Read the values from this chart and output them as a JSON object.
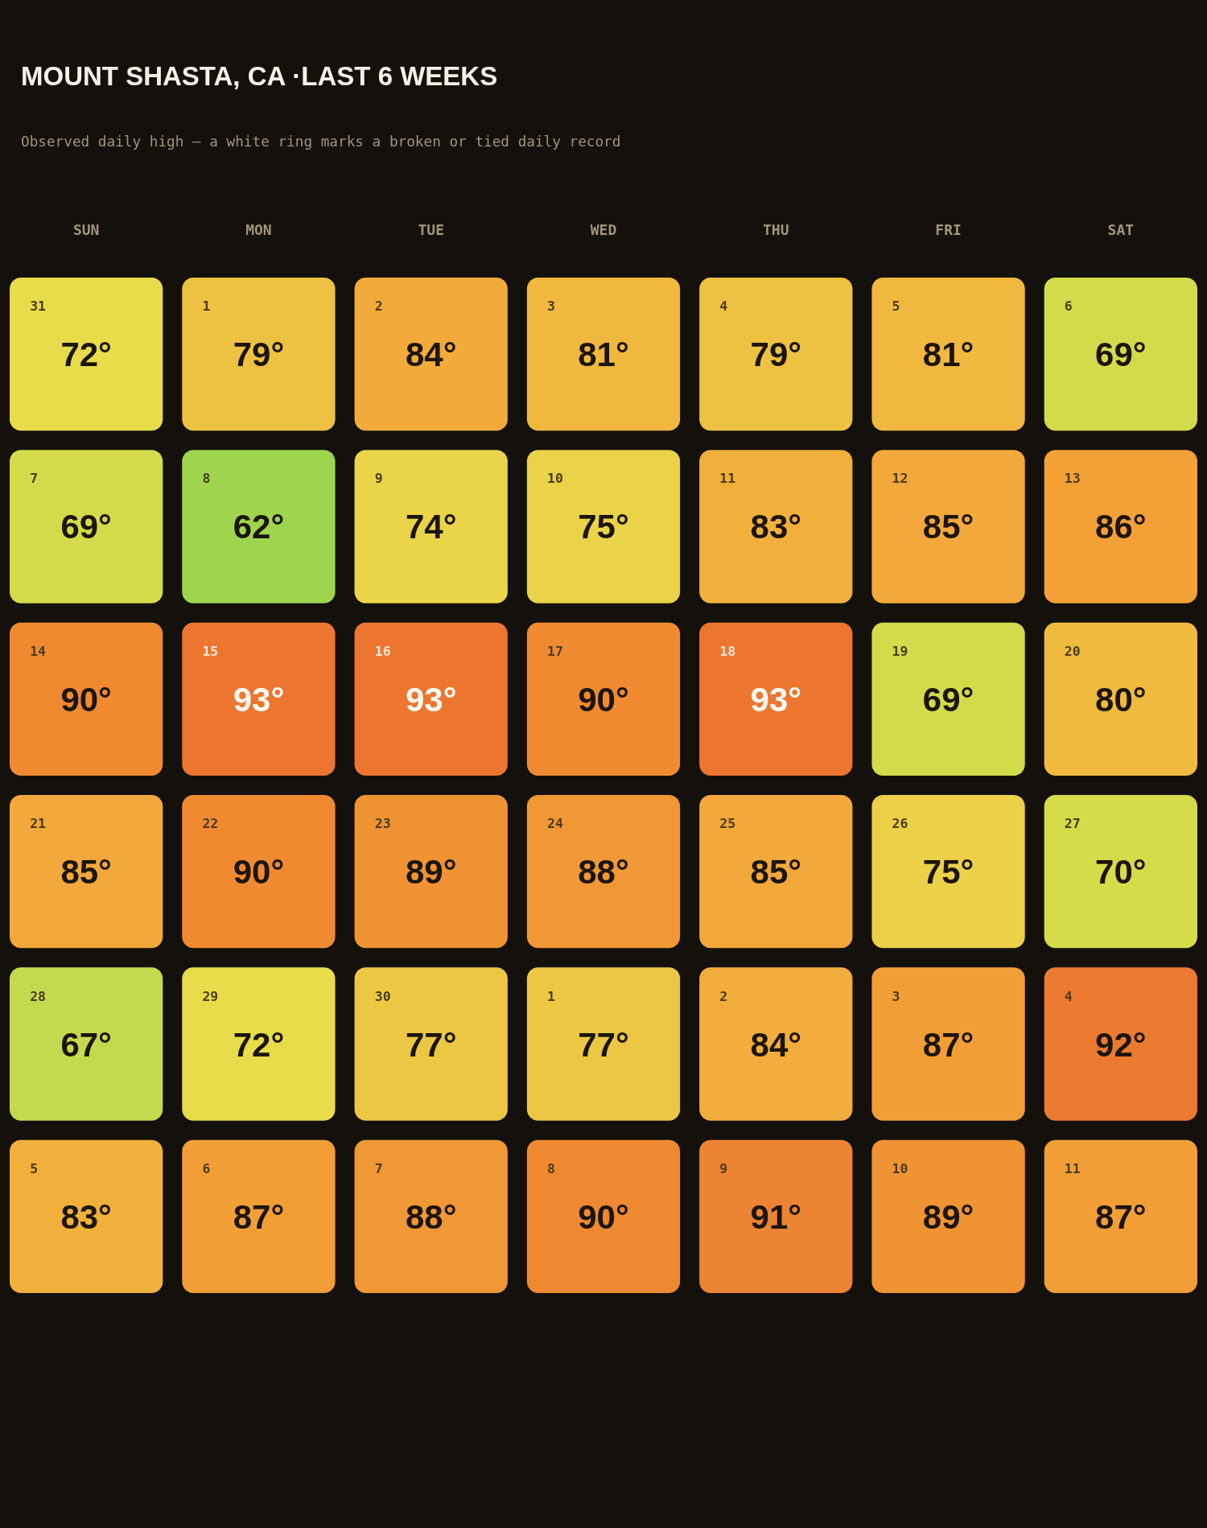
{
  "chart_data": {
    "type": "heatmap",
    "title": "MOUNT SHASTA, CA ·LAST 6 WEEKS",
    "subtitle": "Observed daily high — a white ring marks a broken or tied daily record",
    "categories": [
      "SUN",
      "MON",
      "TUE",
      "WED",
      "THU",
      "FRI",
      "SAT"
    ],
    "y_categories": [
      null,
      null,
      null,
      null,
      null,
      null
    ],
    "cells": [
      [
        72,
        79,
        84,
        81,
        79,
        81,
        69
      ],
      [
        69,
        62,
        74,
        75,
        83,
        85,
        86
      ],
      [
        90,
        93,
        93,
        90,
        93,
        69,
        80
      ],
      [
        85,
        90,
        89,
        88,
        85,
        75,
        70
      ],
      [
        67,
        72,
        77,
        77,
        84,
        87,
        92
      ],
      [
        83,
        87,
        88,
        90,
        91,
        89,
        87
      ]
    ],
    "cell_labels": [
      [
        "72°",
        "79°",
        "84°",
        "81°",
        "79°",
        "81°",
        "69°"
      ],
      [
        "69°",
        "62°",
        "74°",
        "75°",
        "83°",
        "85°",
        "86°"
      ],
      [
        "90°",
        "93°",
        "93°",
        "90°",
        "93°",
        "69°",
        "80°"
      ],
      [
        "85°",
        "90°",
        "89°",
        "88°",
        "85°",
        "75°",
        "70°"
      ],
      [
        "67°",
        "72°",
        "77°",
        "77°",
        "84°",
        "87°",
        "92°"
      ],
      [
        "83°",
        "87°",
        "88°",
        "90°",
        "91°",
        "89°",
        "87°"
      ]
    ],
    "annotations": [
      "31",
      "1",
      "2",
      "3",
      "4",
      "5",
      "6",
      "7",
      "8",
      "9",
      "10",
      "11",
      "12",
      "13",
      "14",
      "15",
      "16",
      "17",
      "18",
      "19",
      "20",
      "21",
      "22",
      "23",
      "24",
      "25",
      "26",
      "27",
      "28",
      "29",
      "30",
      "1",
      "2",
      "3",
      "4",
      "5",
      "6",
      "7",
      "8",
      "9",
      "10",
      "11"
    ],
    "colors": [
      [
        "#e8dc4a",
        "#edc243",
        "#f2ab3b",
        "#f0b83f",
        "#edc243",
        "#f0b83f",
        "#d4db4a"
      ],
      [
        "#d4db4a",
        "#9fd54e",
        "#ead449",
        "#ead249",
        "#f1b03c",
        "#f2a83a",
        "#f3a037"
      ],
      [
        "#f08a31",
        "#ec7630",
        "#ec7630",
        "#f08a31",
        "#ec7630",
        "#d2db4a",
        "#efba3e"
      ],
      [
        "#f2a83a",
        "#f08a31",
        "#ef9333",
        "#f09836",
        "#f2a83a",
        "#ebd048",
        "#d6db4a"
      ],
      [
        "#c4da4e",
        "#e8dc4a",
        "#ecc744",
        "#ecc744",
        "#f2ad3c",
        "#f29e37",
        "#ed7a31"
      ],
      [
        "#f1b03c",
        "#f29e37",
        "#f09836",
        "#ef8931",
        "#ed8433",
        "#ef9333",
        "#f29e37"
      ]
    ]
  }
}
